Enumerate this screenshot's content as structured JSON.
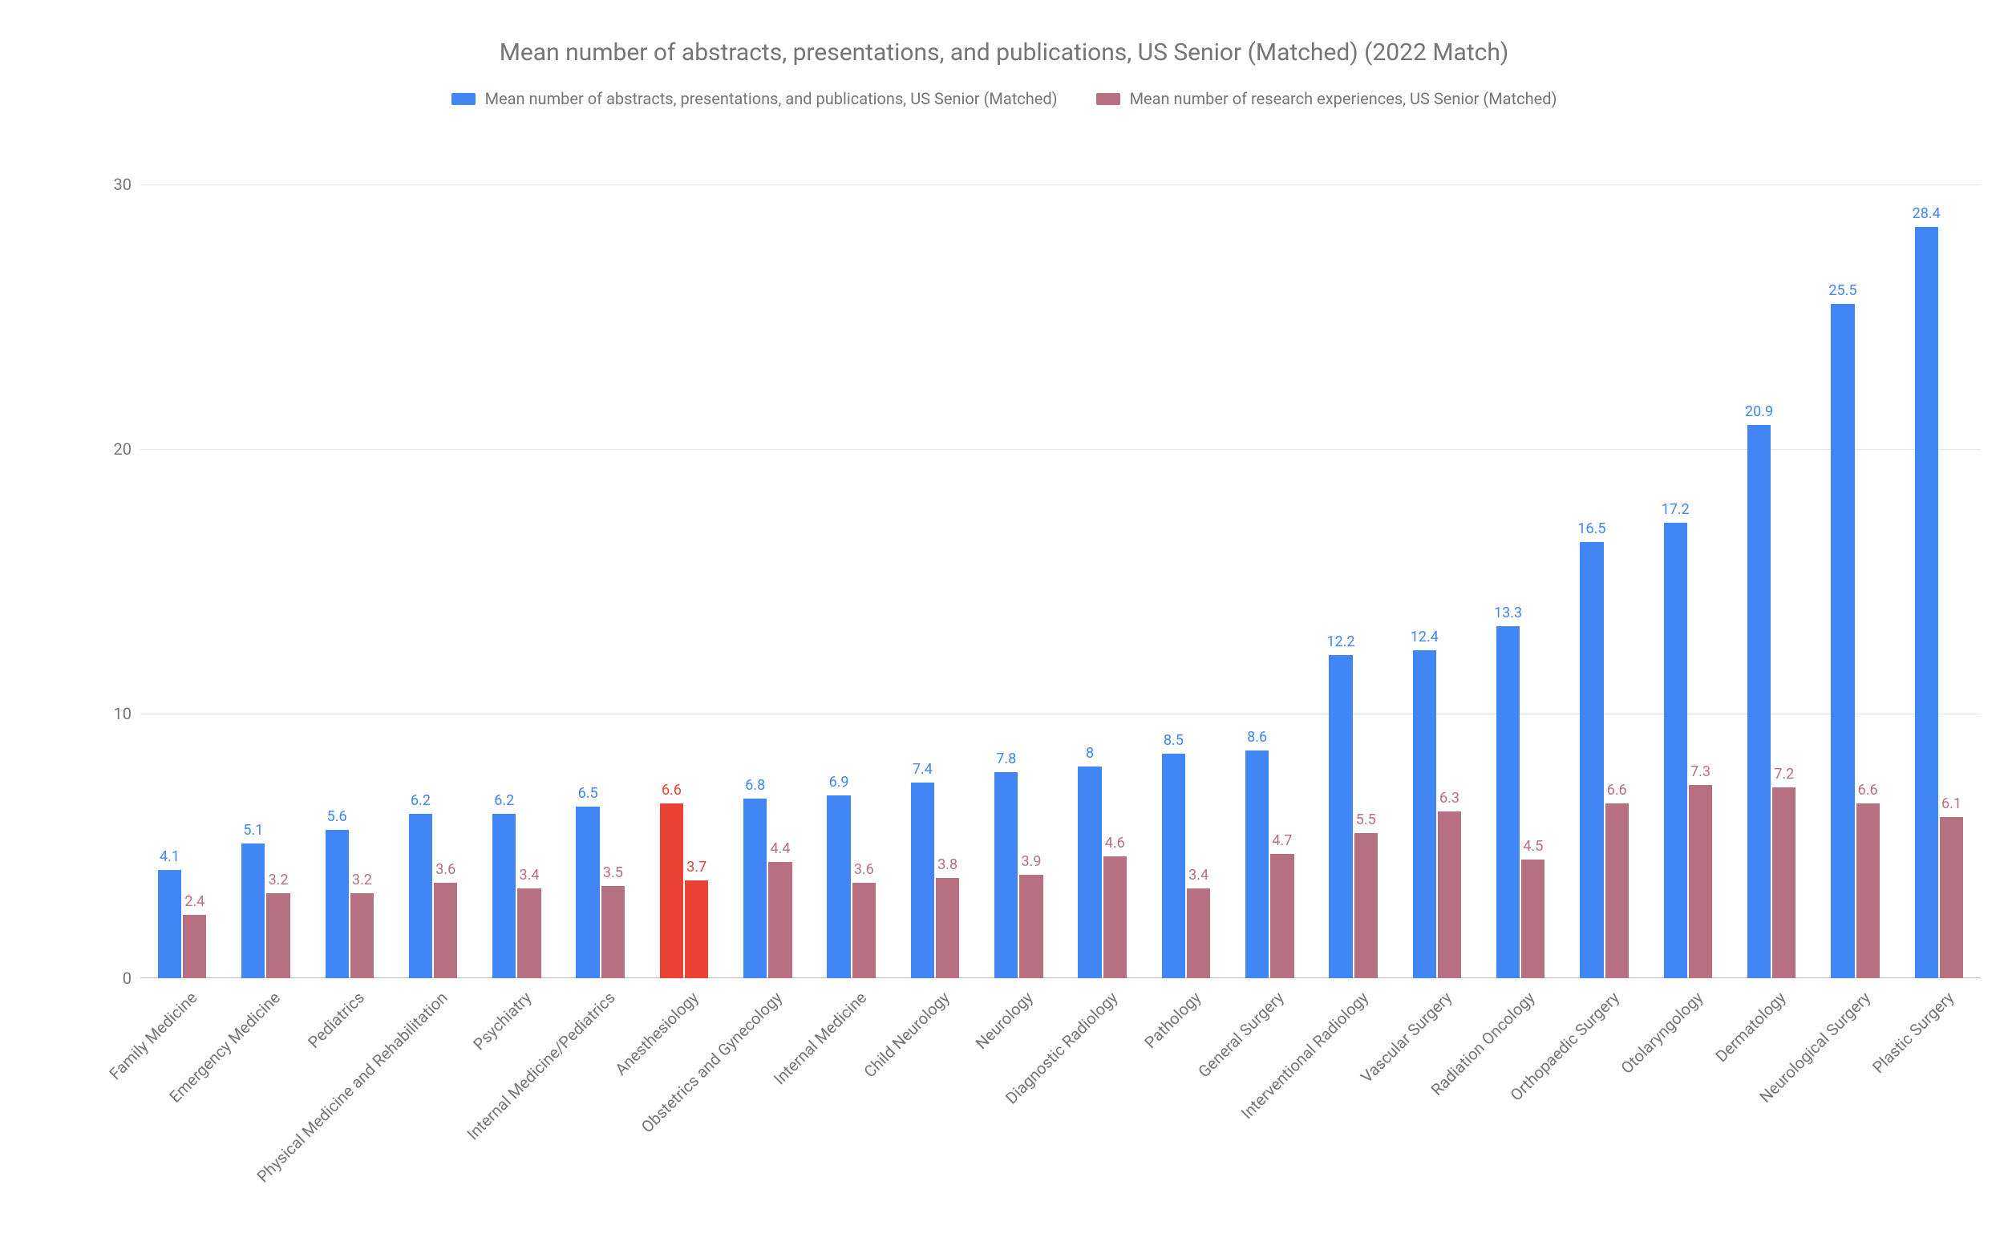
{
  "chart": {
    "type": "bar",
    "title": "Mean number of abstracts, presentations, and publications, US Senior (Matched) (2022 Match)",
    "title_fontsize": 30,
    "title_color": "#757575",
    "background_color": "#ffffff",
    "grid_color": "#e6e6e6",
    "axis_line_color": "#bdbdbd",
    "legend": {
      "items": [
        {
          "label": "Mean number of abstracts, presentations, and publications, US Senior (Matched)",
          "color": "#4285f4"
        },
        {
          "label": "Mean number of research experiences, US Senior (Matched)",
          "color": "#b77081"
        }
      ],
      "fontsize": 20,
      "text_color": "#757575"
    },
    "y_axis": {
      "ylim": [
        0,
        30
      ],
      "ticks": [
        0,
        10,
        20,
        30
      ],
      "label_fontsize": 20,
      "label_color": "#757575"
    },
    "categories": [
      "Family Medicine",
      "Emergency Medicine",
      "Pediatrics",
      "Physical Medicine and Rehabilitation",
      "Psychiatry",
      "Internal Medicine/Pediatrics",
      "Anesthesiology",
      "Obstetrics and Gynecology",
      "Internal Medicine",
      "Child Neurology",
      "Neurology",
      "Diagnostic Radiology",
      "Pathology",
      "General Surgery",
      "Interventional Radiology",
      "Vascular Surgery",
      "Radiation Oncology",
      "Orthopaedic Surgery",
      "Otolaryngology",
      "Dermatology",
      "Neurological Surgery",
      "Plastic Surgery"
    ],
    "series": [
      {
        "name": "abstracts",
        "default_color": "#4285f4",
        "label_color": "#4285f4",
        "values": [
          4.1,
          5.1,
          5.6,
          6.2,
          6.2,
          6.5,
          6.6,
          6.8,
          6.9,
          7.4,
          7.8,
          8,
          8.5,
          8.6,
          12.2,
          12.4,
          13.3,
          16.5,
          17.2,
          20.9,
          25.5,
          28.4
        ],
        "override_colors": {
          "6": "#ea4335"
        },
        "override_label_colors": {
          "6": "#ea4335"
        }
      },
      {
        "name": "research",
        "default_color": "#b77081",
        "label_color": "#b77081",
        "values": [
          2.4,
          3.2,
          3.2,
          3.6,
          3.4,
          3.5,
          3.7,
          4.4,
          3.6,
          3.8,
          3.9,
          4.6,
          3.4,
          4.7,
          5.5,
          6.3,
          4.5,
          6.6,
          7.3,
          7.2,
          6.6,
          6.1
        ],
        "override_colors": {
          "6": "#ea4335"
        },
        "override_label_colors": {
          "6": "#ea4335"
        }
      }
    ],
    "x_axis": {
      "label_fontsize": 20,
      "label_color": "#757575",
      "rotation_deg": -45
    },
    "value_label_fontsize": 18,
    "bar_group_width_ratio": 0.58,
    "bar_gap_within_group": 2
  }
}
